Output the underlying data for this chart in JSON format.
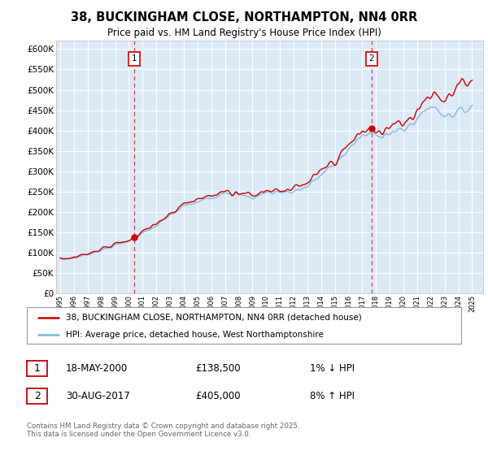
{
  "title": "38, BUCKINGHAM CLOSE, NORTHAMPTON, NN4 0RR",
  "subtitle": "Price paid vs. HM Land Registry's House Price Index (HPI)",
  "plot_bg_color": "#dce9f5",
  "ylim": [
    0,
    620000
  ],
  "yticks": [
    0,
    50000,
    100000,
    150000,
    200000,
    250000,
    300000,
    350000,
    400000,
    450000,
    500000,
    550000,
    600000
  ],
  "sale1_date": 2000.38,
  "sale1_price": 138500,
  "sale1_label": "1",
  "sale2_date": 2017.66,
  "sale2_price": 405000,
  "sale2_label": "2",
  "hpi_color": "#7ab5d8",
  "price_color": "#cc0000",
  "dashed_color": "#cc0000",
  "legend_label1": "38, BUCKINGHAM CLOSE, NORTHAMPTON, NN4 0RR (detached house)",
  "legend_label2": "HPI: Average price, detached house, West Northamptonshire",
  "annotation1_date": "18-MAY-2000",
  "annotation1_price": "£138,500",
  "annotation1_hpi": "1% ↓ HPI",
  "annotation2_date": "30-AUG-2017",
  "annotation2_price": "£405,000",
  "annotation2_hpi": "8% ↑ HPI",
  "footer": "Contains HM Land Registry data © Crown copyright and database right 2025.\nThis data is licensed under the Open Government Licence v3.0."
}
